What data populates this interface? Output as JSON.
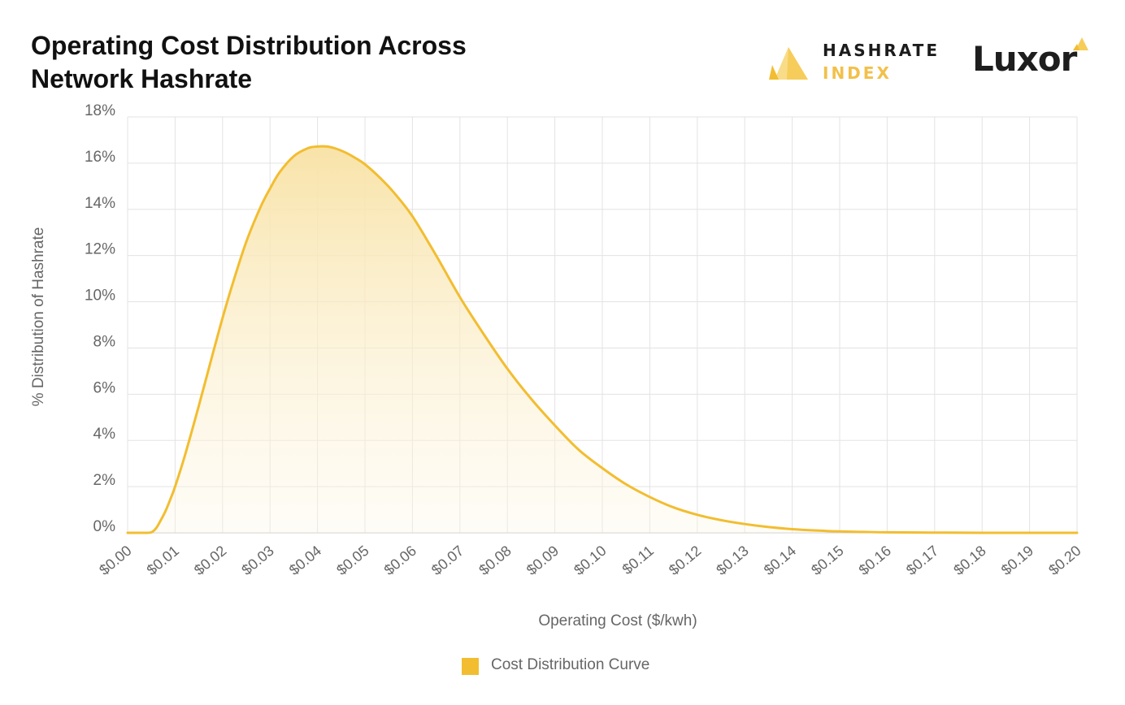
{
  "header": {
    "title_line1": "Operating Cost Distribution Across",
    "title_line2": "Network Hashrate"
  },
  "logos": {
    "hashrate_index_word1": "HASHRATE",
    "hashrate_index_word2": "INDEX",
    "luxor": "Luxor"
  },
  "colors": {
    "curve": "#f2bd30",
    "fill_top": "#f8e3a8",
    "grid": "#e3e3e3",
    "text": "#666666",
    "title": "#111111"
  },
  "chart_data": {
    "type": "area",
    "title": "Operating Cost Distribution Across Network Hashrate",
    "xlabel": "Operating Cost ($/kwh)",
    "ylabel": "% Distribution of Hashrate",
    "xlim": [
      0,
      0.2
    ],
    "ylim": [
      0,
      18
    ],
    "x_ticks": [
      0,
      0.01,
      0.02,
      0.03,
      0.04,
      0.05,
      0.06,
      0.07,
      0.08,
      0.09,
      0.1,
      0.11,
      0.12,
      0.13,
      0.14,
      0.15,
      0.16,
      0.17,
      0.18,
      0.19,
      0.2
    ],
    "x_tick_labels": [
      "$0.00",
      "$0.01",
      "$0.02",
      "$0.03",
      "$0.04",
      "$0.05",
      "$0.06",
      "$0.07",
      "$0.08",
      "$0.09",
      "$0.10",
      "$0.11",
      "$0.12",
      "$0.13",
      "$0.14",
      "$0.15",
      "$0.16",
      "$0.17",
      "$0.18",
      "$0.19",
      "$0.20"
    ],
    "y_ticks": [
      0,
      2,
      4,
      6,
      8,
      10,
      12,
      14,
      16,
      18
    ],
    "y_tick_labels": [
      "0%",
      "2%",
      "4%",
      "6%",
      "8%",
      "10%",
      "12%",
      "14%",
      "16%",
      "18%"
    ],
    "grid": true,
    "legend_position": "bottom-center",
    "series": [
      {
        "name": "Cost Distribution Curve",
        "x": [
          0,
          0.002,
          0.004,
          0.005,
          0.006,
          0.007,
          0.008,
          0.009,
          0.01,
          0.012,
          0.015,
          0.018,
          0.02,
          0.022,
          0.025,
          0.028,
          0.03,
          0.032,
          0.035,
          0.038,
          0.04,
          0.042,
          0.044,
          0.046,
          0.048,
          0.05,
          0.053,
          0.056,
          0.06,
          0.065,
          0.07,
          0.075,
          0.08,
          0.085,
          0.09,
          0.095,
          0.1,
          0.105,
          0.11,
          0.115,
          0.12,
          0.125,
          0.13,
          0.135,
          0.14,
          0.145,
          0.15,
          0.155,
          0.16,
          0.17,
          0.18,
          0.19,
          0.2
        ],
        "y": [
          0.0,
          0.0,
          0.0,
          0.02,
          0.2,
          0.55,
          0.95,
          1.45,
          2.0,
          3.3,
          5.5,
          7.8,
          9.3,
          10.7,
          12.6,
          14.1,
          14.9,
          15.6,
          16.3,
          16.65,
          16.72,
          16.72,
          16.62,
          16.45,
          16.22,
          15.95,
          15.4,
          14.75,
          13.7,
          12.0,
          10.2,
          8.6,
          7.1,
          5.8,
          4.65,
          3.6,
          2.8,
          2.1,
          1.55,
          1.1,
          0.78,
          0.55,
          0.38,
          0.25,
          0.16,
          0.1,
          0.06,
          0.04,
          0.02,
          0.01,
          0.0,
          0.0,
          0.0
        ]
      }
    ]
  }
}
